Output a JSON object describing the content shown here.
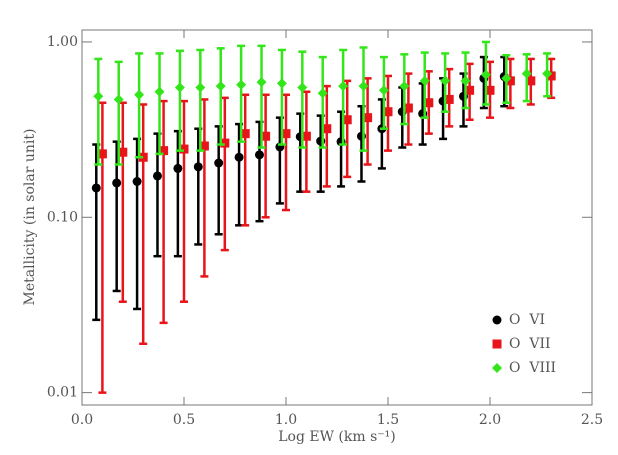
{
  "chart_data": {
    "type": "errorbar",
    "x_label": "Log EW (km s⁻¹)",
    "y_label": "Metallicity (in solar unit)",
    "xlim": [
      0,
      2.5
    ],
    "ylim": [
      0.0085,
      1.17
    ],
    "log_y": true,
    "xticks": [
      {
        "value": 0,
        "label": "0.0"
      },
      0.5,
      {
        "value": 1,
        "label": "1.0"
      },
      1.5,
      {
        "value": 2,
        "label": "2.0"
      },
      2.5
    ],
    "yticks": [
      0.01,
      {
        "value": 0.1,
        "label": "0.10"
      },
      {
        "value": 1,
        "label": "1.00"
      }
    ],
    "legend": "lower right",
    "series": [
      {
        "name": "O  VI",
        "color": "#000000",
        "marker": "circle",
        "x": [
          0.07,
          0.17,
          0.27,
          0.37,
          0.47,
          0.57,
          0.67,
          0.77,
          0.87,
          0.97,
          1.07,
          1.17,
          1.27,
          1.37,
          1.47,
          1.57,
          1.67,
          1.77,
          1.87,
          1.97,
          2.07
        ],
        "values": [
          0.147,
          0.157,
          0.16,
          0.172,
          0.19,
          0.194,
          0.204,
          0.22,
          0.227,
          0.252,
          0.288,
          0.272,
          0.27,
          0.29,
          0.32,
          0.4,
          0.39,
          0.46,
          0.49,
          0.62,
          0.635
        ],
        "low": [
          0.026,
          0.038,
          0.03,
          0.06,
          0.06,
          0.07,
          0.08,
          0.09,
          0.095,
          0.12,
          0.14,
          0.14,
          0.15,
          0.16,
          0.19,
          0.25,
          0.26,
          0.28,
          0.33,
          0.42,
          0.43
        ],
        "high": [
          0.26,
          0.27,
          0.28,
          0.3,
          0.31,
          0.32,
          0.33,
          0.34,
          0.35,
          0.37,
          0.39,
          0.38,
          0.4,
          0.43,
          0.47,
          0.55,
          0.58,
          0.62,
          0.66,
          0.82,
          0.82
        ]
      },
      {
        "name": "O  VII",
        "color": "#e8141a",
        "marker": "square",
        "x": [
          0.1,
          0.2,
          0.3,
          0.4,
          0.5,
          0.6,
          0.7,
          0.8,
          0.9,
          1.0,
          1.1,
          1.2,
          1.3,
          1.4,
          1.5,
          1.6,
          1.7,
          1.8,
          1.9,
          2.0,
          2.1,
          2.2,
          2.3
        ],
        "values": [
          0.23,
          0.235,
          0.22,
          0.24,
          0.245,
          0.255,
          0.265,
          0.3,
          0.29,
          0.3,
          0.29,
          0.32,
          0.36,
          0.37,
          0.4,
          0.42,
          0.45,
          0.47,
          0.53,
          0.53,
          0.6,
          0.6,
          0.64
        ],
        "low": [
          0.01,
          0.033,
          0.019,
          0.025,
          0.033,
          0.046,
          0.065,
          0.09,
          0.1,
          0.11,
          0.14,
          0.15,
          0.17,
          0.2,
          0.24,
          0.26,
          0.3,
          0.33,
          0.36,
          0.37,
          0.42,
          0.44,
          0.48
        ],
        "high": [
          0.45,
          0.45,
          0.44,
          0.46,
          0.46,
          0.47,
          0.48,
          0.5,
          0.5,
          0.5,
          0.52,
          0.56,
          0.6,
          0.62,
          0.64,
          0.66,
          0.68,
          0.7,
          0.75,
          0.77,
          0.8,
          0.8,
          0.8
        ]
      },
      {
        "name": "O  VIII",
        "color": "#33e61a",
        "marker": "diamond",
        "x": [
          0.08,
          0.18,
          0.28,
          0.38,
          0.48,
          0.58,
          0.68,
          0.78,
          0.88,
          0.98,
          1.08,
          1.18,
          1.28,
          1.38,
          1.48,
          1.58,
          1.68,
          1.78,
          1.88,
          1.98,
          2.08,
          2.18,
          2.28
        ],
        "values": [
          0.49,
          0.47,
          0.5,
          0.52,
          0.55,
          0.55,
          0.56,
          0.57,
          0.59,
          0.58,
          0.55,
          0.51,
          0.56,
          0.56,
          0.53,
          0.56,
          0.6,
          0.6,
          0.6,
          0.65,
          0.62,
          0.66,
          0.66
        ],
        "low": [
          0.2,
          0.2,
          0.22,
          0.23,
          0.24,
          0.24,
          0.26,
          0.27,
          0.25,
          0.26,
          0.25,
          0.25,
          0.26,
          0.24,
          0.32,
          0.34,
          0.37,
          0.4,
          0.42,
          0.44,
          0.45,
          0.46,
          0.49
        ],
        "high": [
          0.8,
          0.77,
          0.86,
          0.86,
          0.89,
          0.9,
          0.92,
          0.95,
          0.95,
          0.9,
          0.88,
          0.82,
          0.9,
          0.93,
          0.82,
          0.85,
          0.87,
          0.86,
          0.87,
          1.0,
          0.84,
          0.85,
          0.86
        ]
      }
    ]
  }
}
